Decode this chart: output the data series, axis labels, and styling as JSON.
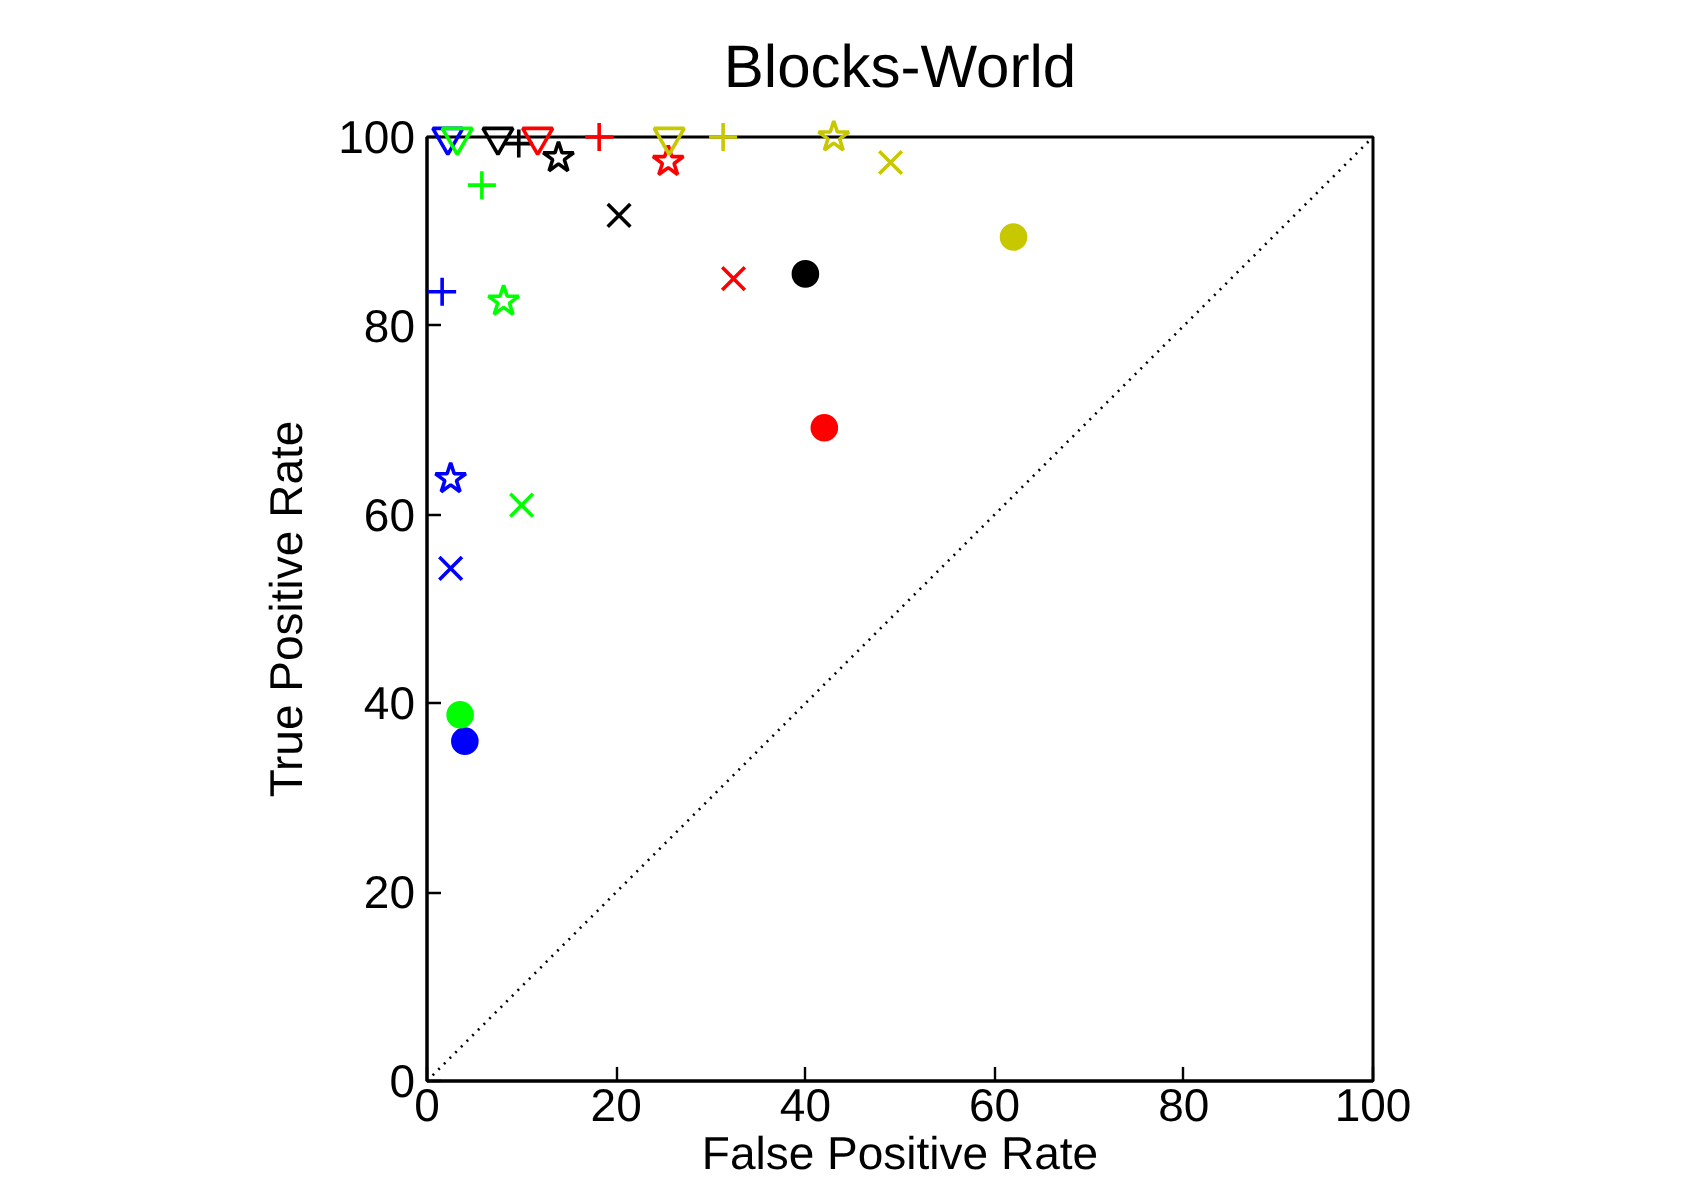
{
  "chart_data": {
    "type": "scatter",
    "title": "Blocks-World",
    "xlabel": "False Positive Rate",
    "ylabel": "True Positive Rate",
    "xlim": [
      0,
      100
    ],
    "ylim": [
      0,
      100
    ],
    "xticks": [
      0,
      20,
      40,
      60,
      80,
      100
    ],
    "yticks": [
      0,
      20,
      40,
      60,
      80,
      100
    ],
    "grid": false,
    "series": [
      {
        "marker": "circle",
        "x": [
          4,
          3.5,
          42,
          40,
          62
        ],
        "values": [
          36,
          38.8,
          69.2,
          85.5,
          89.4
        ],
        "colors": [
          "#0000ff",
          "#00ff00",
          "#ff0000",
          "#000000",
          "#c8c800"
        ]
      },
      {
        "marker": "x",
        "x": [
          2.5,
          10,
          32.4,
          20.3,
          49
        ],
        "values": [
          54.3,
          61,
          85,
          91.7,
          97.3
        ],
        "colors": [
          "#0000ff",
          "#00ff00",
          "#ff0000",
          "#000000",
          "#c8c800"
        ]
      },
      {
        "marker": "star",
        "x": [
          2.5,
          8.1,
          25.5,
          13.9,
          43
        ],
        "values": [
          63.8,
          82.6,
          97.4,
          97.8,
          100
        ],
        "colors": [
          "#0000ff",
          "#00ff00",
          "#ff0000",
          "#000000",
          "#c8c800"
        ]
      },
      {
        "marker": "cross",
        "x": [
          1.6,
          5.8,
          18.2,
          9.7,
          31.3
        ],
        "values": [
          83.6,
          94.9,
          100,
          99.3,
          100
        ],
        "colors": [
          "#0000ff",
          "#00ff00",
          "#ff0000",
          "#000000",
          "#c8c800"
        ]
      },
      {
        "marker": "triangle_down",
        "x": [
          2.2,
          3.2,
          11.7,
          7.5,
          25.6
        ],
        "values": [
          100,
          100,
          100,
          100,
          100
        ],
        "colors": [
          "#0000ff",
          "#00ff00",
          "#ff0000",
          "#000000",
          "#c8c800"
        ]
      },
      {
        "type": "line",
        "x": [
          0,
          100
        ],
        "values": [
          0,
          100
        ],
        "color": "#000000",
        "line_style": "dotted"
      }
    ]
  }
}
